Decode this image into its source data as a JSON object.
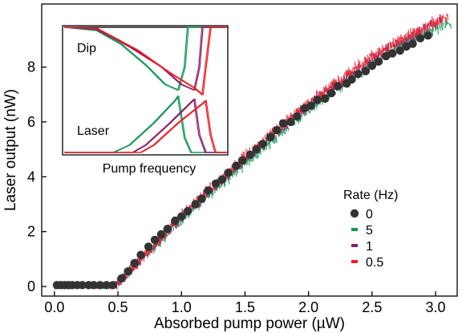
{
  "chart_data": {
    "type": "scatter",
    "xlabel": "Absorbed pump power (µW)",
    "ylabel": "Laser output (nW)",
    "xlim": [
      -0.1,
      3.17
    ],
    "ylim": [
      -0.35,
      10.3
    ],
    "xticks": [
      "0.0",
      "0.5",
      "1.0",
      "1.5",
      "2.0",
      "2.5",
      "3.0"
    ],
    "xtick_values": [
      0.0,
      0.5,
      1.0,
      1.5,
      2.0,
      2.5,
      3.0
    ],
    "yticks": [
      "0",
      "2",
      "4",
      "6",
      "8"
    ],
    "ytick_values": [
      0,
      2,
      4,
      6,
      8
    ],
    "grid": false,
    "legend": {
      "title": "Rate (Hz)",
      "placement": "center-right",
      "entries": [
        "0",
        "5",
        "1",
        "0.5"
      ]
    },
    "colors": {
      "rate_0": "#333333",
      "rate_5": "#149954",
      "rate_1": "#8a2066",
      "rate_05": "#ee1c24",
      "inset_top": "#222222"
    },
    "series": [
      {
        "name": "0",
        "marker": "circle",
        "x": [
          0.02,
          0.05,
          0.08,
          0.11,
          0.14,
          0.18,
          0.22,
          0.27,
          0.31,
          0.36,
          0.41,
          0.46,
          0.53,
          0.58,
          0.63,
          0.68,
          0.74,
          0.79,
          0.84,
          0.89,
          0.95,
          1.0,
          1.05,
          1.11,
          1.16,
          1.21,
          1.27,
          1.32,
          1.37,
          1.43,
          1.48,
          1.54,
          1.59,
          1.64,
          1.7,
          1.75,
          1.8,
          1.86,
          1.91,
          1.97,
          2.02,
          2.07,
          2.13,
          2.18,
          2.23,
          2.3,
          2.34,
          2.39,
          2.45,
          2.5,
          2.55,
          2.61,
          2.66,
          2.72,
          2.77,
          2.82,
          2.88,
          2.94
        ],
        "y": [
          0.05,
          0.05,
          0.05,
          0.05,
          0.05,
          0.05,
          0.05,
          0.05,
          0.05,
          0.05,
          0.05,
          0.05,
          0.3,
          0.55,
          0.85,
          1.15,
          1.45,
          1.7,
          1.9,
          2.1,
          2.4,
          2.55,
          2.75,
          3.0,
          3.2,
          3.5,
          3.75,
          3.9,
          4.15,
          4.4,
          4.6,
          4.8,
          5.0,
          5.2,
          5.45,
          5.7,
          5.95,
          6.0,
          6.2,
          6.5,
          6.6,
          6.8,
          6.85,
          7.05,
          7.3,
          7.4,
          7.55,
          7.75,
          7.85,
          8.05,
          8.2,
          8.4,
          8.5,
          8.6,
          8.75,
          8.85,
          9.05,
          9.15
        ]
      },
      {
        "name": "5",
        "marker": "scatter-noise",
        "x": [
          0.0,
          0.46,
          1.0,
          1.5,
          2.0,
          2.5,
          2.9,
          3.12
        ],
        "y": [
          0.0,
          0.0,
          2.45,
          4.5,
          6.45,
          8.1,
          9.25,
          9.6
        ]
      },
      {
        "name": "1",
        "marker": "scatter-noise",
        "x": [
          0.0,
          0.47,
          1.0,
          1.5,
          2.0,
          2.5,
          2.9,
          3.05
        ],
        "y": [
          0.0,
          0.0,
          2.55,
          4.65,
          6.6,
          8.3,
          9.35,
          9.75
        ]
      },
      {
        "name": "0.5",
        "marker": "scatter-noise",
        "x": [
          0.0,
          0.48,
          1.0,
          1.5,
          2.0,
          2.5,
          2.9,
          3.1
        ],
        "y": [
          0.0,
          0.0,
          2.6,
          4.75,
          6.7,
          8.4,
          9.45,
          9.85
        ]
      }
    ]
  },
  "inset": {
    "xlabel": "Pump frequency",
    "label_top": "Dip",
    "label_bottom": "Laser",
    "curves": {
      "dip": [
        {
          "color_key": "rate_5",
          "x": [
            0.0,
            0.2,
            0.35,
            0.5,
            0.62,
            0.7,
            0.74,
            0.76,
            1.0
          ],
          "y": [
            0.95,
            0.92,
            0.8,
            0.62,
            0.45,
            0.4,
            0.6,
            0.95,
            0.95
          ]
        },
        {
          "color_key": "rate_1",
          "x": [
            0.0,
            0.2,
            0.4,
            0.6,
            0.72,
            0.8,
            0.83,
            0.85,
            1.0
          ],
          "y": [
            0.95,
            0.93,
            0.78,
            0.6,
            0.45,
            0.4,
            0.6,
            0.95,
            0.95
          ]
        },
        {
          "color_key": "rate_05",
          "x": [
            0.0,
            0.2,
            0.45,
            0.65,
            0.8,
            0.85,
            0.87,
            0.9,
            1.0
          ],
          "y": [
            0.95,
            0.94,
            0.75,
            0.55,
            0.42,
            0.36,
            0.6,
            0.95,
            0.95
          ]
        }
      ],
      "laser": [
        {
          "color_key": "rate_5",
          "x": [
            0.0,
            0.3,
            0.4,
            0.55,
            0.68,
            0.7,
            0.74,
            0.78,
            1.0
          ],
          "y": [
            0.0,
            0.0,
            0.05,
            0.2,
            0.35,
            0.38,
            0.1,
            0.0,
            0.0
          ]
        },
        {
          "color_key": "rate_1",
          "x": [
            0.0,
            0.42,
            0.5,
            0.65,
            0.78,
            0.8,
            0.83,
            0.87,
            1.0
          ],
          "y": [
            0.0,
            0.0,
            0.05,
            0.2,
            0.34,
            0.36,
            0.12,
            0.0,
            0.0
          ]
        },
        {
          "color_key": "rate_05",
          "x": [
            0.0,
            0.47,
            0.55,
            0.7,
            0.85,
            0.87,
            0.9,
            0.93,
            1.0
          ],
          "y": [
            0.0,
            0.0,
            0.05,
            0.2,
            0.33,
            0.35,
            0.12,
            0.0,
            0.0
          ]
        }
      ]
    }
  }
}
